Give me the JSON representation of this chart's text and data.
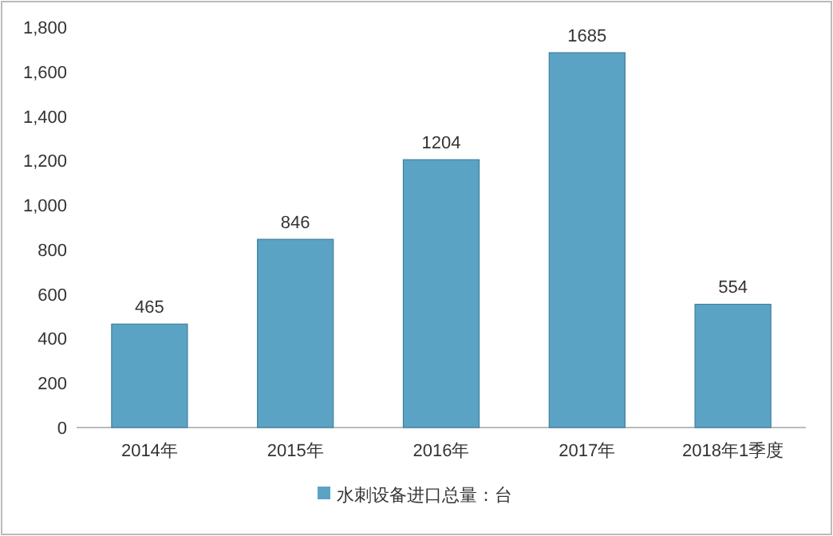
{
  "chart_data": {
    "type": "bar",
    "categories": [
      "2014年",
      "2015年",
      "2016年",
      "2017年",
      "2018年1季度"
    ],
    "series": [
      {
        "name": "水刺设备进口总量：台",
        "color": "#5ba3c4",
        "values": [
          465,
          846,
          1204,
          1685,
          554
        ]
      }
    ],
    "ylim": [
      0,
      1800
    ],
    "yticks": [
      0,
      {
        "value": 200,
        "label": "200"
      },
      {
        "value": 400,
        "label": "400"
      },
      {
        "value": 600,
        "label": "600"
      },
      {
        "value": 800,
        "label": "800"
      },
      {
        "value": 1000,
        "label": "1,000"
      },
      {
        "value": 1200,
        "label": "1,200"
      },
      {
        "value": 1400,
        "label": "1,400"
      },
      {
        "value": 1600,
        "label": "1,600"
      },
      {
        "value": 1800,
        "label": "1,800"
      }
    ],
    "data_labels": true,
    "grid": false,
    "legend": "bottom"
  }
}
